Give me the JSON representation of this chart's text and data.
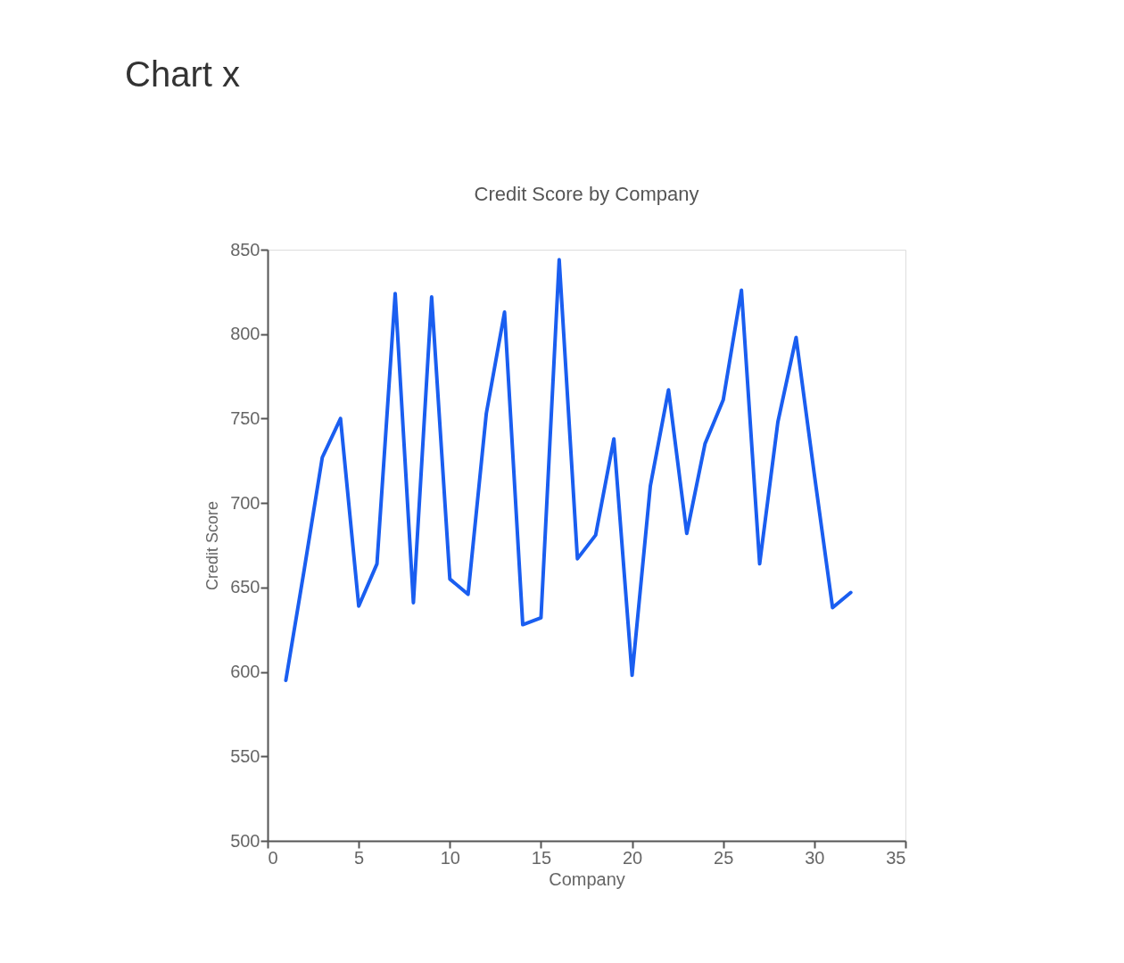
{
  "chart_data": {
    "type": "line",
    "title": "Credit Score by Company",
    "xlabel": "Company",
    "ylabel": "Credit Score",
    "annotations": [
      "Chart x"
    ],
    "x": [
      1,
      2,
      3,
      4,
      5,
      6,
      7,
      8,
      9,
      10,
      11,
      12,
      13,
      14,
      15,
      16,
      17,
      18,
      19,
      20,
      21,
      22,
      23,
      24,
      25,
      26,
      27,
      28,
      29,
      30,
      31,
      32
    ],
    "series": [
      {
        "color": "#1a5ef0",
        "values": [
          595,
          660,
          727,
          750,
          639,
          664,
          824,
          641,
          822,
          655,
          646,
          753,
          813,
          628,
          632,
          844,
          667,
          681,
          738,
          598,
          710,
          767,
          682,
          735,
          761,
          826,
          664,
          748,
          798,
          717,
          638,
          647
        ]
      }
    ],
    "xlim": [
      0,
      35
    ],
    "xticks": [
      0,
      5,
      10,
      15,
      20,
      25,
      30,
      35
    ],
    "ylim": [
      500,
      850
    ],
    "yticks": [
      500,
      550,
      600,
      650,
      700,
      750,
      800,
      850
    ]
  }
}
